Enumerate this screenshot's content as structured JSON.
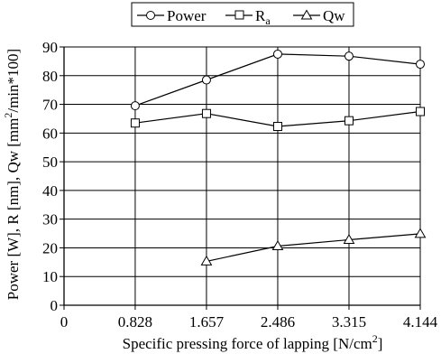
{
  "chart_data": {
    "type": "line",
    "xlabel_main": "Specific pressing force of lapping [N/cm",
    "xlabel_sup": "2",
    "xlabel_end": "]",
    "ylabel_part1": "Power [W], R",
    "ylabel_part2": " [nm], Qw [mm",
    "ylabel_sup": "2",
    "ylabel_part3": "/min*100]",
    "xlim": [
      0,
      4.144
    ],
    "ylim": [
      0,
      90
    ],
    "x_ticks": [
      0,
      0.828,
      1.657,
      2.486,
      3.315,
      4.144
    ],
    "x_tick_labels": [
      "0",
      "0.828",
      "1.657",
      "2.486",
      "3.315",
      "4.144"
    ],
    "y_ticks": [
      0,
      10,
      20,
      30,
      40,
      50,
      60,
      70,
      80,
      90
    ],
    "y_tick_labels": [
      "0",
      "10",
      "20",
      "30",
      "40",
      "50",
      "60",
      "70",
      "80",
      "90"
    ],
    "grid": true,
    "legend_position": "top-center",
    "series": [
      {
        "name": "Power",
        "marker": "circle",
        "x": [
          0.828,
          1.657,
          2.486,
          3.315,
          4.144
        ],
        "y": [
          69.5,
          78.5,
          87.5,
          86.8,
          84
        ]
      },
      {
        "name": "R",
        "name_sub": "a",
        "marker": "square",
        "x": [
          0.828,
          1.657,
          2.486,
          3.315,
          4.144
        ],
        "y": [
          63.5,
          66.8,
          62.3,
          64.3,
          67.5
        ]
      },
      {
        "name": "Qw",
        "marker": "triangle",
        "x": [
          1.657,
          2.486,
          3.315,
          4.144
        ],
        "y": [
          15.3,
          20.6,
          22.8,
          24.9
        ]
      }
    ]
  }
}
